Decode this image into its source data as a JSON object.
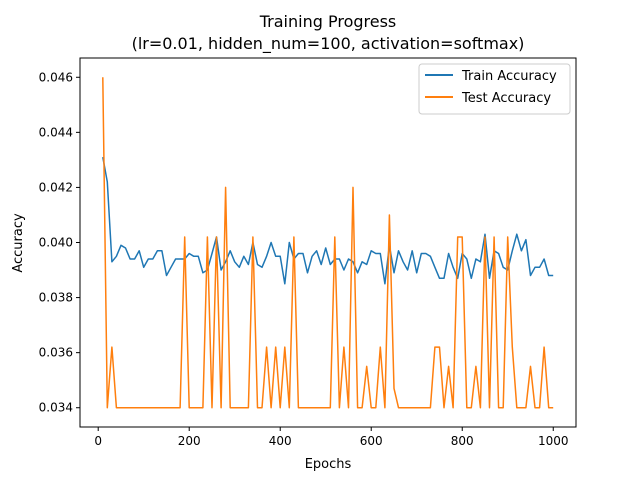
{
  "chart_data": {
    "type": "line",
    "title": "Training Progress",
    "subtitle": "(lr=0.01, hidden_num=100, activation=softmax)",
    "xlabel": "Epochs",
    "ylabel": "Accuracy",
    "xlim": [
      -40,
      1050
    ],
    "ylim": [
      0.0333,
      0.0467
    ],
    "xticks": [
      0,
      200,
      400,
      600,
      800,
      1000
    ],
    "yticks": [
      0.034,
      0.036,
      0.038,
      0.04,
      0.042,
      0.044,
      0.046
    ],
    "xtick_labels": [
      "0",
      "200",
      "400",
      "600",
      "800",
      "1000"
    ],
    "ytick_labels": [
      "0.034",
      "0.036",
      "0.038",
      "0.040",
      "0.042",
      "0.044",
      "0.046"
    ],
    "legend_position": "top-right",
    "grid": false,
    "x": [
      10,
      20,
      30,
      40,
      50,
      60,
      70,
      80,
      90,
      100,
      110,
      120,
      130,
      140,
      150,
      160,
      170,
      180,
      190,
      200,
      210,
      220,
      230,
      240,
      250,
      260,
      270,
      280,
      290,
      300,
      310,
      320,
      330,
      340,
      350,
      360,
      370,
      380,
      390,
      400,
      410,
      420,
      430,
      440,
      450,
      460,
      470,
      480,
      490,
      500,
      510,
      520,
      530,
      540,
      550,
      560,
      570,
      580,
      590,
      600,
      610,
      620,
      630,
      640,
      650,
      660,
      670,
      680,
      690,
      700,
      710,
      720,
      730,
      740,
      750,
      760,
      770,
      780,
      790,
      800,
      810,
      820,
      830,
      840,
      850,
      860,
      870,
      880,
      890,
      900,
      910,
      920,
      930,
      940,
      950,
      960,
      970,
      980,
      990,
      1000
    ],
    "series": [
      {
        "name": "Train Accuracy",
        "color": "#1f77b4",
        "values": [
          0.0431,
          0.0422,
          0.0393,
          0.0395,
          0.0399,
          0.0398,
          0.0394,
          0.0394,
          0.0397,
          0.0391,
          0.0394,
          0.0394,
          0.0397,
          0.0397,
          0.0388,
          0.0391,
          0.0394,
          0.0394,
          0.0394,
          0.0396,
          0.0395,
          0.0395,
          0.0389,
          0.039,
          0.0396,
          0.0402,
          0.039,
          0.0393,
          0.0397,
          0.0393,
          0.0391,
          0.0395,
          0.0392,
          0.04,
          0.0392,
          0.0391,
          0.0395,
          0.04,
          0.0395,
          0.0395,
          0.0385,
          0.04,
          0.0394,
          0.0396,
          0.0396,
          0.0389,
          0.0395,
          0.0397,
          0.0392,
          0.0398,
          0.0392,
          0.0394,
          0.0394,
          0.039,
          0.0394,
          0.0393,
          0.0389,
          0.0393,
          0.0392,
          0.0397,
          0.0396,
          0.0396,
          0.0385,
          0.0399,
          0.0389,
          0.0397,
          0.0393,
          0.039,
          0.0397,
          0.0389,
          0.0396,
          0.0396,
          0.0395,
          0.0391,
          0.0387,
          0.0387,
          0.0396,
          0.0391,
          0.0387,
          0.0396,
          0.0394,
          0.0387,
          0.0394,
          0.0393,
          0.0403,
          0.0387,
          0.0397,
          0.0396,
          0.0391,
          0.039,
          0.0397,
          0.0403,
          0.0397,
          0.0401,
          0.0388,
          0.0391,
          0.0391,
          0.0394,
          0.0388,
          0.0388
        ]
      },
      {
        "name": "Test Accuracy",
        "color": "#ff7f0e",
        "values": [
          0.046,
          0.034,
          0.0362,
          0.034,
          0.034,
          0.034,
          0.034,
          0.034,
          0.034,
          0.034,
          0.034,
          0.034,
          0.034,
          0.034,
          0.034,
          0.034,
          0.034,
          0.034,
          0.0402,
          0.034,
          0.034,
          0.034,
          0.034,
          0.0402,
          0.034,
          0.0402,
          0.034,
          0.042,
          0.034,
          0.034,
          0.034,
          0.034,
          0.034,
          0.0402,
          0.034,
          0.034,
          0.0362,
          0.034,
          0.0362,
          0.034,
          0.0362,
          0.034,
          0.0402,
          0.034,
          0.034,
          0.034,
          0.034,
          0.034,
          0.034,
          0.034,
          0.034,
          0.0402,
          0.034,
          0.0362,
          0.034,
          0.042,
          0.034,
          0.034,
          0.0355,
          0.034,
          0.034,
          0.0362,
          0.034,
          0.041,
          0.0347,
          0.034,
          0.034,
          0.034,
          0.034,
          0.034,
          0.034,
          0.034,
          0.034,
          0.0362,
          0.0362,
          0.034,
          0.0355,
          0.034,
          0.0402,
          0.0402,
          0.034,
          0.034,
          0.0355,
          0.034,
          0.0402,
          0.034,
          0.0402,
          0.034,
          0.034,
          0.0402,
          0.0362,
          0.034,
          0.034,
          0.034,
          0.0355,
          0.034,
          0.034,
          0.0362,
          0.034,
          0.034
        ]
      }
    ]
  }
}
